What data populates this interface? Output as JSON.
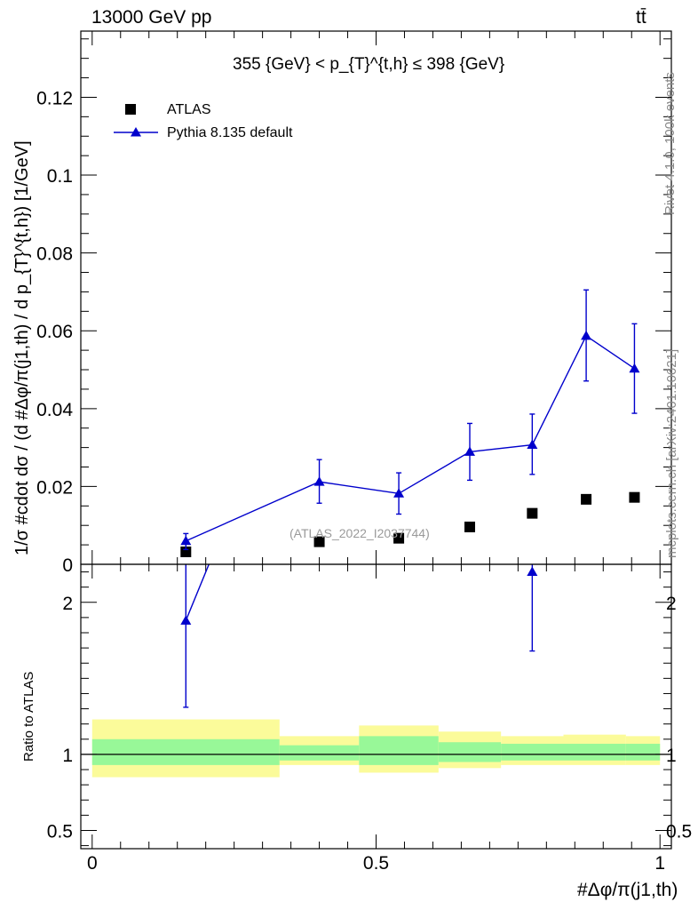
{
  "header": {
    "left": "13000 GeV pp",
    "right": "tt̄"
  },
  "side_labels": {
    "rivet": "Rivet 4.1.0,  100k events",
    "mcplots": "mcplots.cern.ch [arXiv:2401.10621]"
  },
  "watermark": "(ATLAS_2022_I2037744)",
  "range_label": "355 {GeV} < p_{T}^{t,h} ≤ 398 {GeV}",
  "ylabel_main": "1/σ #cdot dσ / (d #Δφ/π(j1,th) / d p_{T}^{t,h}) [1/GeV]",
  "ylabel_ratio": "Ratio to ATLAS",
  "xlabel": "#Δφ/π(j1,th)",
  "chart_data": {
    "type": "scatter",
    "title": "355 {GeV} < p_{T}^{t,h} ≤ 398 {GeV}",
    "xlabel": "#Δφ/π(j1,th)",
    "ylabel": "1/σ #cdot dσ / (d #Δφ/π(j1,th) / d p_{T}^{t,h}) [1/GeV]",
    "xlim": [
      -0.02,
      1.02
    ],
    "ylim": [
      0,
      0.137
    ],
    "x_ticks": [
      "0",
      "0.5",
      "1"
    ],
    "x_tick_values": [
      0,
      0.5,
      1
    ],
    "y_ticks": [
      "0",
      "0.02",
      "0.04",
      "0.06",
      "0.08",
      "0.1",
      "0.12"
    ],
    "y_tick_values": [
      0,
      0.02,
      0.04,
      0.06,
      0.08,
      0.1,
      0.12
    ],
    "legend": [
      "ATLAS",
      "Pythia 8.135 default"
    ],
    "legend_position": "top-left",
    "series": [
      {
        "name": "ATLAS",
        "color": "#000000",
        "marker": "square",
        "x": [
          0.165,
          0.4,
          0.54,
          0.665,
          0.775,
          0.87,
          0.955
        ],
        "y": [
          0.0032,
          0.0058,
          0.0067,
          0.0096,
          0.0131,
          0.0167,
          0.0172
        ]
      },
      {
        "name": "Pythia 8.135 default",
        "color": "#0000cc",
        "marker": "triangle",
        "x": [
          0.165,
          0.4,
          0.54,
          0.665,
          0.775,
          0.87,
          0.955
        ],
        "y": [
          0.006,
          0.0212,
          0.0182,
          0.0289,
          0.0307,
          0.0587,
          0.0503
        ],
        "err_low": [
          0.0022,
          0.0055,
          0.0053,
          0.0073,
          0.0076,
          0.0116,
          0.0115
        ],
        "err_high": [
          0.0019,
          0.0057,
          0.0053,
          0.0073,
          0.0079,
          0.0118,
          0.0115
        ]
      }
    ],
    "ratio": {
      "ylabel": "Ratio to ATLAS",
      "ylim": [
        0.38,
        2.25
      ],
      "y_ticks": [
        "0.5",
        "1",
        "2"
      ],
      "y_tick_values": [
        0.5,
        1,
        2
      ],
      "reference_line": 1,
      "bins": [
        {
          "lo": 0.0,
          "hi": 0.33,
          "inner": [
            0.93,
            1.1
          ],
          "outer": [
            0.85,
            1.23
          ]
        },
        {
          "lo": 0.33,
          "hi": 0.47,
          "inner": [
            0.96,
            1.06
          ],
          "outer": [
            0.93,
            1.12
          ]
        },
        {
          "lo": 0.47,
          "hi": 0.61,
          "inner": [
            0.93,
            1.12
          ],
          "outer": [
            0.88,
            1.19
          ]
        },
        {
          "lo": 0.61,
          "hi": 0.72,
          "inner": [
            0.95,
            1.08
          ],
          "outer": [
            0.91,
            1.15
          ]
        },
        {
          "lo": 0.72,
          "hi": 0.83,
          "inner": [
            0.96,
            1.07
          ],
          "outer": [
            0.93,
            1.12
          ]
        },
        {
          "lo": 0.83,
          "hi": 0.94,
          "inner": [
            0.96,
            1.07
          ],
          "outer": [
            0.93,
            1.13
          ]
        },
        {
          "lo": 0.94,
          "hi": 1.0,
          "inner": [
            0.96,
            1.07
          ],
          "outer": [
            0.93,
            1.12
          ]
        }
      ],
      "inner_color": "#98f898",
      "outer_color": "#fbfb9a",
      "series": {
        "name": "Pythia 8.135 default",
        "x": [
          0.165,
          0.775
        ],
        "y": [
          1.88,
          2.2
        ],
        "err_low": [
          0.57,
          0.52
        ],
        "err_high": [
          0.5,
          0.2
        ],
        "offscale_segment": {
          "x": [
            0.165,
            0.255
          ],
          "y": [
            1.88,
            2.7
          ]
        }
      }
    }
  }
}
